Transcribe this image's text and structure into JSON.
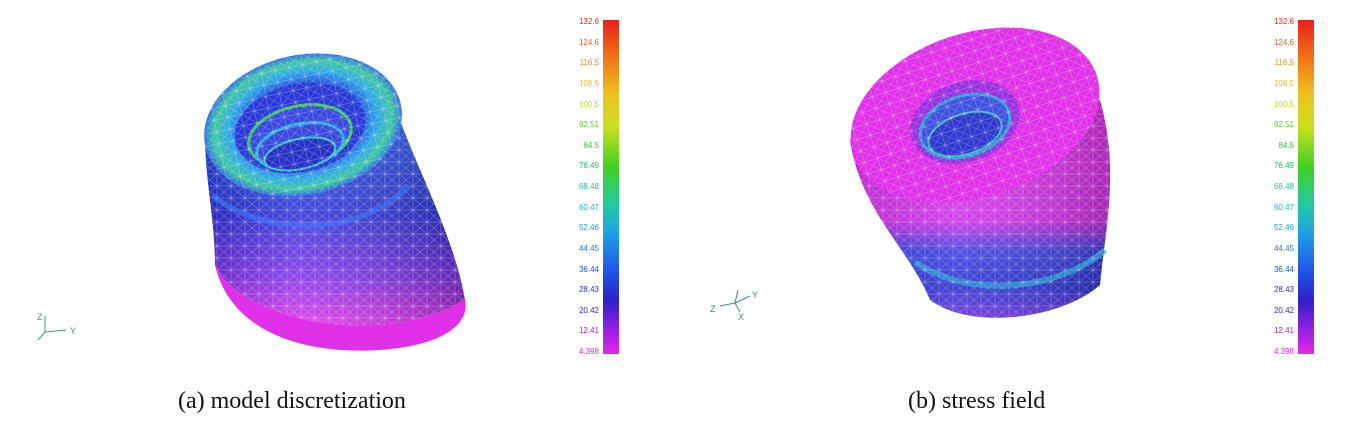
{
  "figure_a": {
    "caption": "(a) model discretization",
    "axes": {
      "vertical": "Z",
      "horizontal": "Y"
    }
  },
  "figure_b": {
    "caption": "(b) stress field",
    "axes": {
      "left": "Z",
      "up": "Y",
      "down": "X"
    }
  },
  "legend": {
    "ticks": [
      "132.6",
      "124.6",
      "116.5",
      "108.5",
      "100.5",
      "92.51",
      "84.5",
      "76.49",
      "68.48",
      "60.47",
      "52.46",
      "44.45",
      "36.44",
      "28.43",
      "20.42",
      "12.41",
      "4.398"
    ],
    "tick_colors": [
      "#e8201a",
      "#ee5a18",
      "#f08a14",
      "#e8c020",
      "#c8d420",
      "#60cc20",
      "#30c830",
      "#20c060",
      "#20c0a0",
      "#20b8c8",
      "#20a0e0",
      "#1878e8",
      "#2050e8",
      "#2830d8",
      "#4020c8",
      "#a020e0",
      "#e028e0"
    ]
  },
  "colors": {
    "magenta": "#e030e8",
    "blue": "#2a3ad8",
    "cyan": "#30a8e8",
    "green": "#40c840",
    "mesh_line": "#ffffff"
  }
}
